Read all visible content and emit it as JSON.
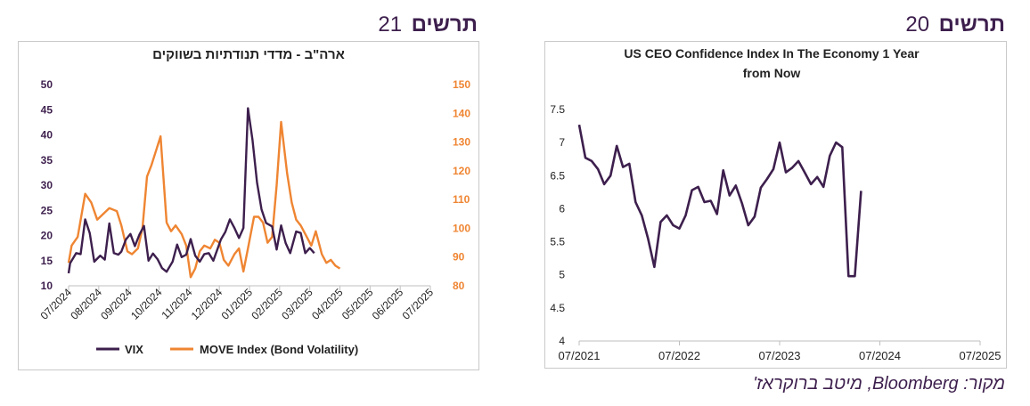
{
  "headings": {
    "left": {
      "word": "תרשים",
      "number": "21"
    },
    "right": {
      "word": "תרשים",
      "number": "20"
    }
  },
  "source": "מקור: Bloomberg, מיטב ברוקראז'",
  "colors": {
    "purple": "#3d1f4d",
    "orange": "#ef8532",
    "axis_left_text": "#3d1f4d",
    "axis_right_text": "#ef8532"
  },
  "chart_data": [
    {
      "type": "line",
      "title": "ארה\"ב - מדדי תנודתיות בשווקים",
      "legend_position": "bottom",
      "x_tick_labels": [
        "07/2024",
        "08/2024",
        "09/2024",
        "10/2024",
        "11/2024",
        "12/2024",
        "01/2025",
        "02/2025",
        "03/2025",
        "04/2025",
        "05/2025",
        "06/2025",
        "07/2025"
      ],
      "y_left": {
        "min": 10,
        "max": 50,
        "ticks": [
          10,
          15,
          20,
          25,
          30,
          35,
          40,
          45,
          50
        ]
      },
      "y_right": {
        "min": 80,
        "max": 150,
        "ticks": [
          80,
          90,
          100,
          110,
          120,
          130,
          140,
          150
        ]
      },
      "series": [
        {
          "name": "VIX",
          "axis": "left",
          "color": "#3d1f4d",
          "x": [
            0.0,
            0.05,
            0.25,
            0.4,
            0.55,
            0.7,
            0.85,
            1.05,
            1.2,
            1.35,
            1.5,
            1.65,
            1.75,
            1.9,
            2.05,
            2.2,
            2.35,
            2.5,
            2.65,
            2.8,
            2.95,
            3.1,
            3.25,
            3.45,
            3.6,
            3.75,
            3.9,
            4.05,
            4.2,
            4.35,
            4.5,
            4.65,
            4.8,
            4.95,
            5.05,
            5.2,
            5.35,
            5.5,
            5.65,
            5.8,
            5.95,
            6.1,
            6.25,
            6.4,
            6.55,
            6.75,
            6.9,
            7.05,
            7.2,
            7.35,
            7.55,
            7.7,
            7.85,
            8.0,
            8.15,
            8.3,
            8.45,
            8.6,
            8.75,
            8.9,
            9.05,
            9.2,
            9.35,
            9.5,
            9.7,
            9.85,
            10.0,
            10.15,
            10.35,
            10.5,
            10.65,
            10.8,
            10.95,
            11.1,
            11.3,
            11.45,
            11.6,
            11.8,
            12.0,
            12.2
          ],
          "y": [
            12.5,
            14.5,
            16.5,
            16.3,
            23.2,
            20.5,
            14.8,
            16.0,
            15.2,
            22.4,
            16.5,
            16.2,
            16.8,
            19.2,
            20.3,
            17.9,
            20.2,
            21.9,
            15.0,
            16.4,
            15.3,
            13.5,
            12.8,
            14.8,
            18.2,
            15.7,
            16.2,
            19.3,
            16.0,
            14.8,
            16.3,
            16.5,
            15.0,
            17.5,
            19.2,
            20.7,
            23.2,
            21.5,
            19.5,
            21.5,
            45.3,
            39.0,
            30.5,
            25.2,
            22.5,
            21.8,
            17.2,
            22.0,
            18.5,
            16.5,
            20.8,
            20.5,
            16.5,
            17.5,
            16.5,
            null,
            null,
            null,
            null,
            null,
            null,
            null,
            null,
            null,
            null,
            null,
            null,
            null,
            null,
            null,
            null,
            null,
            null,
            null,
            null,
            null,
            null,
            null,
            null,
            null
          ]
        },
        {
          "name": "MOVE Index (Bond Volatility)",
          "axis": "right",
          "color": "#ef8532",
          "x": [
            0.0,
            0.1,
            0.3,
            0.55,
            0.75,
            0.95,
            1.15,
            1.35,
            1.6,
            1.75,
            1.95,
            2.1,
            2.3,
            2.45,
            2.6,
            2.75,
            2.9,
            3.05,
            3.25,
            3.4,
            3.55,
            3.75,
            3.9,
            4.05,
            4.2,
            4.35,
            4.5,
            4.7,
            4.85,
            5.0,
            5.15,
            5.3,
            5.5,
            5.65,
            5.8,
            5.95,
            6.15,
            6.3,
            6.45,
            6.6,
            6.75,
            6.9,
            7.05,
            7.25,
            7.4,
            7.55,
            7.7,
            7.9,
            8.05,
            8.2,
            8.4,
            8.55,
            8.7,
            8.85,
            9.0,
            9.15,
            9.3,
            9.45,
            9.6,
            9.8,
            9.95,
            10.1,
            10.3,
            10.45,
            10.6,
            10.8,
            11.0,
            11.2,
            11.4,
            11.55,
            11.7,
            11.9,
            12.1,
            12.25
          ],
          "y": [
            88,
            94,
            97,
            112,
            109,
            103,
            105,
            107,
            106,
            101,
            92,
            91,
            93,
            100,
            118,
            122,
            127,
            132,
            102,
            99,
            101,
            98,
            94,
            83,
            86,
            92,
            94,
            93,
            96,
            95,
            89,
            87,
            91,
            93,
            85,
            93,
            104,
            104,
            102,
            95,
            97,
            115,
            137,
            119,
            109,
            103,
            101,
            97,
            94,
            99,
            91,
            88,
            89,
            87,
            86,
            null,
            null,
            null,
            null,
            null,
            null,
            null,
            null,
            null,
            null,
            null,
            null,
            null,
            null,
            null,
            null,
            null,
            null,
            null
          ]
        }
      ]
    },
    {
      "type": "line",
      "title": "US CEO Confidence Index In The Economy 1 Year from Now",
      "y_axis": {
        "min": 4,
        "max": 7.5,
        "ticks": [
          "4",
          "4.5",
          "5",
          "5.5",
          "6",
          "6.5",
          "7",
          "7.5"
        ]
      },
      "x_tick_labels": [
        "07/2021",
        "07/2022",
        "07/2023",
        "07/2024",
        "07/2025"
      ],
      "series": [
        {
          "name": "",
          "color": "#3d1f4d",
          "x": [
            0.0,
            0.25,
            0.5,
            0.75,
            1.0,
            1.25,
            1.5,
            1.75,
            2.0,
            2.25,
            2.5,
            2.75,
            3.0,
            3.25,
            3.5,
            3.75,
            4.0,
            4.25,
            4.5,
            4.75,
            5.0,
            5.25,
            5.5,
            5.75,
            6.0,
            6.25,
            6.5,
            6.75,
            7.0,
            7.25,
            7.5,
            7.75,
            8.0,
            8.25,
            8.5,
            8.75,
            9.0,
            9.25,
            9.5,
            9.75,
            10.0,
            10.25,
            10.5,
            10.75,
            11.0,
            11.25,
            11.5,
            11.75,
            12.0,
            12.25,
            12.5,
            12.75,
            13.0,
            13.25,
            13.5,
            13.75,
            14.0,
            14.25,
            14.5,
            14.75,
            15.0,
            15.25,
            15.5,
            15.75,
            16.0
          ],
          "y": [
            7.27,
            6.77,
            6.72,
            6.6,
            6.37,
            6.5,
            6.95,
            6.63,
            6.68,
            6.1,
            5.9,
            5.55,
            5.12,
            5.8,
            5.9,
            5.75,
            5.7,
            5.9,
            6.28,
            6.33,
            6.1,
            6.12,
            5.92,
            6.58,
            6.2,
            6.35,
            6.08,
            5.75,
            5.88,
            6.32,
            6.45,
            6.6,
            7.0,
            6.55,
            6.62,
            6.72,
            6.55,
            6.37,
            6.48,
            6.33,
            6.8,
            7.0,
            6.93,
            4.98,
            4.98,
            6.27,
            null,
            null,
            null,
            null,
            null,
            null,
            null,
            null,
            null,
            null,
            null,
            null,
            null,
            null,
            null,
            null,
            null,
            null,
            null
          ]
        }
      ]
    }
  ]
}
